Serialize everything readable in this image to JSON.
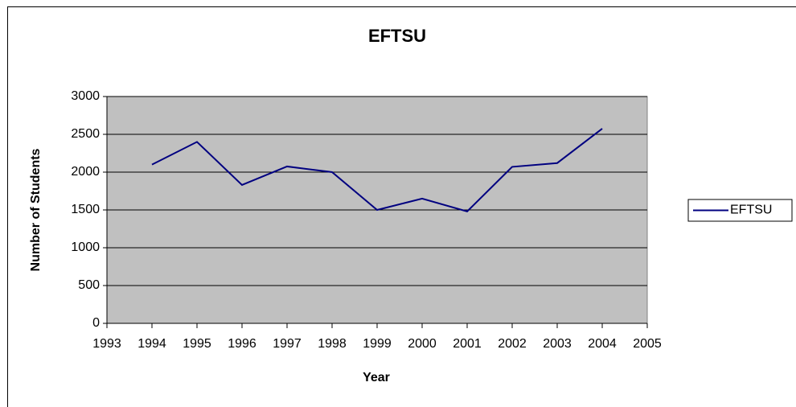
{
  "chart_data": {
    "type": "line",
    "title": "EFTSU",
    "x_label": "Year",
    "y_label": "Number of Students",
    "x": [
      1994,
      1995,
      1996,
      1997,
      1998,
      1999,
      2000,
      2001,
      2002,
      2003,
      2004
    ],
    "series": [
      {
        "name": "EFTSU",
        "color": "#000080",
        "values": [
          2100,
          2400,
          1830,
          2075,
          2000,
          1500,
          1650,
          1480,
          2070,
          2120,
          2575
        ]
      }
    ],
    "xlim": [
      1993,
      2005
    ],
    "xticks": [
      1993,
      1994,
      1995,
      1996,
      1997,
      1998,
      1999,
      2000,
      2001,
      2002,
      2003,
      2004,
      2005
    ],
    "ylim": [
      0,
      3000
    ],
    "yticks": [
      0,
      500,
      1000,
      1500,
      2000,
      2500,
      3000
    ],
    "grid": true,
    "legend": "right",
    "plot_background": "#c0c0c0"
  }
}
